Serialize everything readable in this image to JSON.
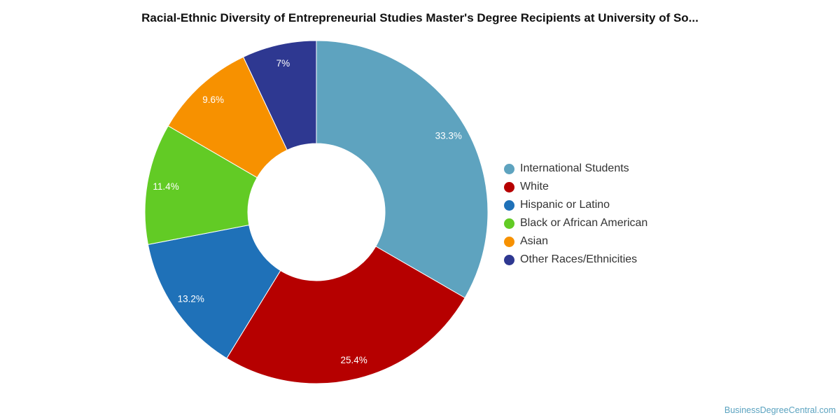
{
  "chart_data": {
    "type": "pie",
    "donut": true,
    "title": "Racial-Ethnic Diversity of Entrepreneurial Studies Master's Degree Recipients at University of So...",
    "slices": [
      {
        "label": "International Students",
        "value": 33.3,
        "display": "33.3%",
        "color": "#5ea3bf"
      },
      {
        "label": "White",
        "value": 25.4,
        "display": "25.4%",
        "color": "#b60000"
      },
      {
        "label": "Hispanic or Latino",
        "value": 13.2,
        "display": "13.2%",
        "color": "#1f71b8"
      },
      {
        "label": "Black or African American",
        "value": 11.4,
        "display": "11.4%",
        "color": "#62cb25"
      },
      {
        "label": "Asian",
        "value": 9.6,
        "display": "9.6%",
        "color": "#f79100"
      },
      {
        "label": "Other Races/Ethnicities",
        "value": 7,
        "display": "7%",
        "color": "#2e3891"
      }
    ],
    "legend_position": "right"
  },
  "credit": "BusinessDegreeCentral.com"
}
